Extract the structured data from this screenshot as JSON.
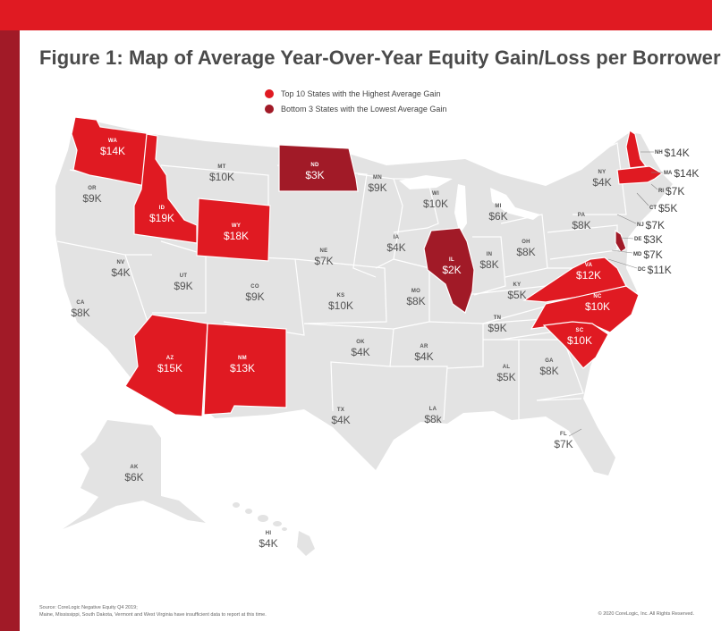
{
  "title": "Figure 1: Map of Average Year-Over-Year Equity Gain/Loss per Borrower",
  "legend": [
    {
      "label": "Top 10 States with the Highest Average Gain",
      "color": "#e01a22"
    },
    {
      "label": "Bottom 3 States with the Lowest Average Gain",
      "color": "#a11a27"
    }
  ],
  "colors": {
    "top10": "#e01a22",
    "bottom3": "#a11a27",
    "other": "#e3e3e3",
    "accent": "#e01a22"
  },
  "states": [
    {
      "abbr": "WA",
      "value": "$14K",
      "category": "top10"
    },
    {
      "abbr": "OR",
      "value": "$9K",
      "category": "other"
    },
    {
      "abbr": "CA",
      "value": "$8K",
      "category": "other"
    },
    {
      "abbr": "ID",
      "value": "$19K",
      "category": "top10"
    },
    {
      "abbr": "NV",
      "value": "$4K",
      "category": "other"
    },
    {
      "abbr": "MT",
      "value": "$10K",
      "category": "other"
    },
    {
      "abbr": "WY",
      "value": "$18K",
      "category": "top10"
    },
    {
      "abbr": "UT",
      "value": "$9K",
      "category": "other"
    },
    {
      "abbr": "AZ",
      "value": "$15K",
      "category": "top10"
    },
    {
      "abbr": "CO",
      "value": "$9K",
      "category": "other"
    },
    {
      "abbr": "NM",
      "value": "$13K",
      "category": "top10"
    },
    {
      "abbr": "ND",
      "value": "$3K",
      "category": "bottom3"
    },
    {
      "abbr": "NE",
      "value": "$7K",
      "category": "other"
    },
    {
      "abbr": "KS",
      "value": "$10K",
      "category": "other"
    },
    {
      "abbr": "OK",
      "value": "$4K",
      "category": "other"
    },
    {
      "abbr": "TX",
      "value": "$4K",
      "category": "other"
    },
    {
      "abbr": "MN",
      "value": "$9K",
      "category": "other"
    },
    {
      "abbr": "IA",
      "value": "$4K",
      "category": "other"
    },
    {
      "abbr": "MO",
      "value": "$8K",
      "category": "other"
    },
    {
      "abbr": "AR",
      "value": "$4K",
      "category": "other"
    },
    {
      "abbr": "LA",
      "value": "$8k",
      "category": "other"
    },
    {
      "abbr": "WI",
      "value": "$10K",
      "category": "other"
    },
    {
      "abbr": "IL",
      "value": "$2K",
      "category": "bottom3"
    },
    {
      "abbr": "MI",
      "value": "$6K",
      "category": "other"
    },
    {
      "abbr": "IN",
      "value": "$8K",
      "category": "other"
    },
    {
      "abbr": "OH",
      "value": "$8K",
      "category": "other"
    },
    {
      "abbr": "KY",
      "value": "$5K",
      "category": "other"
    },
    {
      "abbr": "TN",
      "value": "$9K",
      "category": "other"
    },
    {
      "abbr": "AL",
      "value": "$5K",
      "category": "other"
    },
    {
      "abbr": "GA",
      "value": "$8K",
      "category": "other"
    },
    {
      "abbr": "FL",
      "value": "$7K",
      "category": "other"
    },
    {
      "abbr": "SC",
      "value": "$10K",
      "category": "top10"
    },
    {
      "abbr": "NC",
      "value": "$10K",
      "category": "top10"
    },
    {
      "abbr": "VA",
      "value": "$12K",
      "category": "top10"
    },
    {
      "abbr": "PA",
      "value": "$8K",
      "category": "other"
    },
    {
      "abbr": "NY",
      "value": "$4K",
      "category": "other"
    },
    {
      "abbr": "NH",
      "value": "$14K",
      "category": "top10"
    },
    {
      "abbr": "MA",
      "value": "$14K",
      "category": "top10"
    },
    {
      "abbr": "RI",
      "value": "$7K",
      "category": "other"
    },
    {
      "abbr": "CT",
      "value": "$5K",
      "category": "other"
    },
    {
      "abbr": "NJ",
      "value": "$7K",
      "category": "other"
    },
    {
      "abbr": "DE",
      "value": "$3K",
      "category": "bottom3"
    },
    {
      "abbr": "MD",
      "value": "$7K",
      "category": "other"
    },
    {
      "abbr": "DC",
      "value": "$11K",
      "category": "top10"
    },
    {
      "abbr": "AK",
      "value": "$6K",
      "category": "other"
    },
    {
      "abbr": "HI",
      "value": "$4K",
      "category": "other"
    }
  ],
  "footer": {
    "source": "Source: CoreLogic Negative Equity Q4 2019;",
    "note": "Maine, Mississippi, South Dakota, Vermont and West Virginia have insufficient data to report at this time.",
    "copyright": "© 2020 CoreLogic, Inc. All Rights Reserved."
  }
}
